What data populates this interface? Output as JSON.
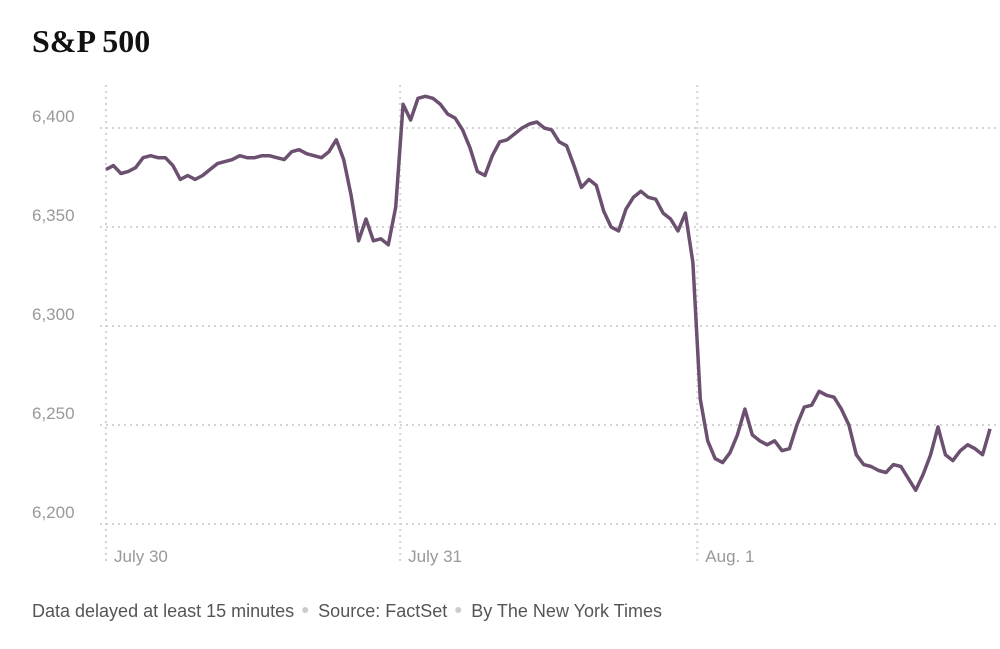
{
  "chart_data": {
    "type": "line",
    "title": "S&P 500",
    "categories": [
      "July 30",
      null,
      null,
      null,
      null,
      null,
      null,
      null,
      null,
      null,
      null,
      null,
      null,
      null,
      null,
      null,
      null,
      null,
      null,
      null,
      null,
      null,
      null,
      null,
      null,
      null,
      null,
      null,
      null,
      null,
      null,
      null,
      null,
      null,
      null,
      null,
      null,
      null,
      null,
      null,
      "July 31",
      null,
      null,
      null,
      null,
      null,
      null,
      null,
      null,
      null,
      null,
      null,
      null,
      null,
      null,
      null,
      null,
      null,
      null,
      null,
      null,
      null,
      null,
      null,
      null,
      null,
      null,
      null,
      null,
      null,
      null,
      null,
      null,
      null,
      null,
      null,
      null,
      null,
      null,
      null,
      "Aug. 1",
      null,
      null,
      null,
      null,
      null,
      null,
      null,
      null,
      null,
      null,
      null,
      null,
      null,
      null,
      null,
      null,
      null,
      null,
      null,
      null,
      null,
      null,
      null,
      null,
      null,
      null,
      null,
      null,
      null,
      null,
      null,
      null,
      null,
      null,
      null,
      null,
      null,
      null,
      null
    ],
    "series": [
      {
        "name": "S&P 500",
        "color": "#6b5070",
        "values": [
          6379,
          6381,
          6377,
          6378,
          6380,
          6385,
          6386,
          6385,
          6385,
          6381,
          6374,
          6376,
          6374,
          6376,
          6379,
          6382,
          6383,
          6384,
          6386,
          6385,
          6385,
          6386,
          6386,
          6385,
          6384,
          6388,
          6389,
          6387,
          6386,
          6385,
          6388,
          6394,
          6384,
          6366,
          6343,
          6354,
          6343,
          6344,
          6341,
          6360,
          6412,
          6404,
          6415,
          6416,
          6415,
          6412,
          6407,
          6405,
          6399,
          6390,
          6378,
          6376,
          6386,
          6393,
          6394,
          6397,
          6400,
          6402,
          6403,
          6400,
          6399,
          6393,
          6391,
          6381,
          6370,
          6374,
          6371,
          6358,
          6350,
          6348,
          6359,
          6365,
          6368,
          6365,
          6364,
          6357,
          6354,
          6348,
          6357,
          6332,
          6263,
          6242,
          6233,
          6231,
          6236,
          6245,
          6258,
          6245,
          6242,
          6240,
          6242,
          6237,
          6238,
          6250,
          6259,
          6260,
          6267,
          6265,
          6264,
          6258,
          6250,
          6235,
          6230,
          6229,
          6227,
          6226,
          6230,
          6229,
          6223,
          6217,
          6225,
          6235,
          6249,
          6235,
          6232,
          6237,
          6240,
          6238,
          6235,
          6248
        ]
      }
    ],
    "ylim": [
      6182,
      6422
    ],
    "yticks": [
      {
        "value": 6200,
        "label": "6,200"
      },
      {
        "value": 6250,
        "label": "6,250"
      },
      {
        "value": 6300,
        "label": "6,300"
      },
      {
        "value": 6350,
        "label": "6,350"
      },
      {
        "value": 6400,
        "label": "6,400"
      }
    ],
    "grid": true,
    "footer": [
      "Data delayed at least 15 minutes",
      "Source: FactSet",
      "By The New York Times"
    ]
  }
}
